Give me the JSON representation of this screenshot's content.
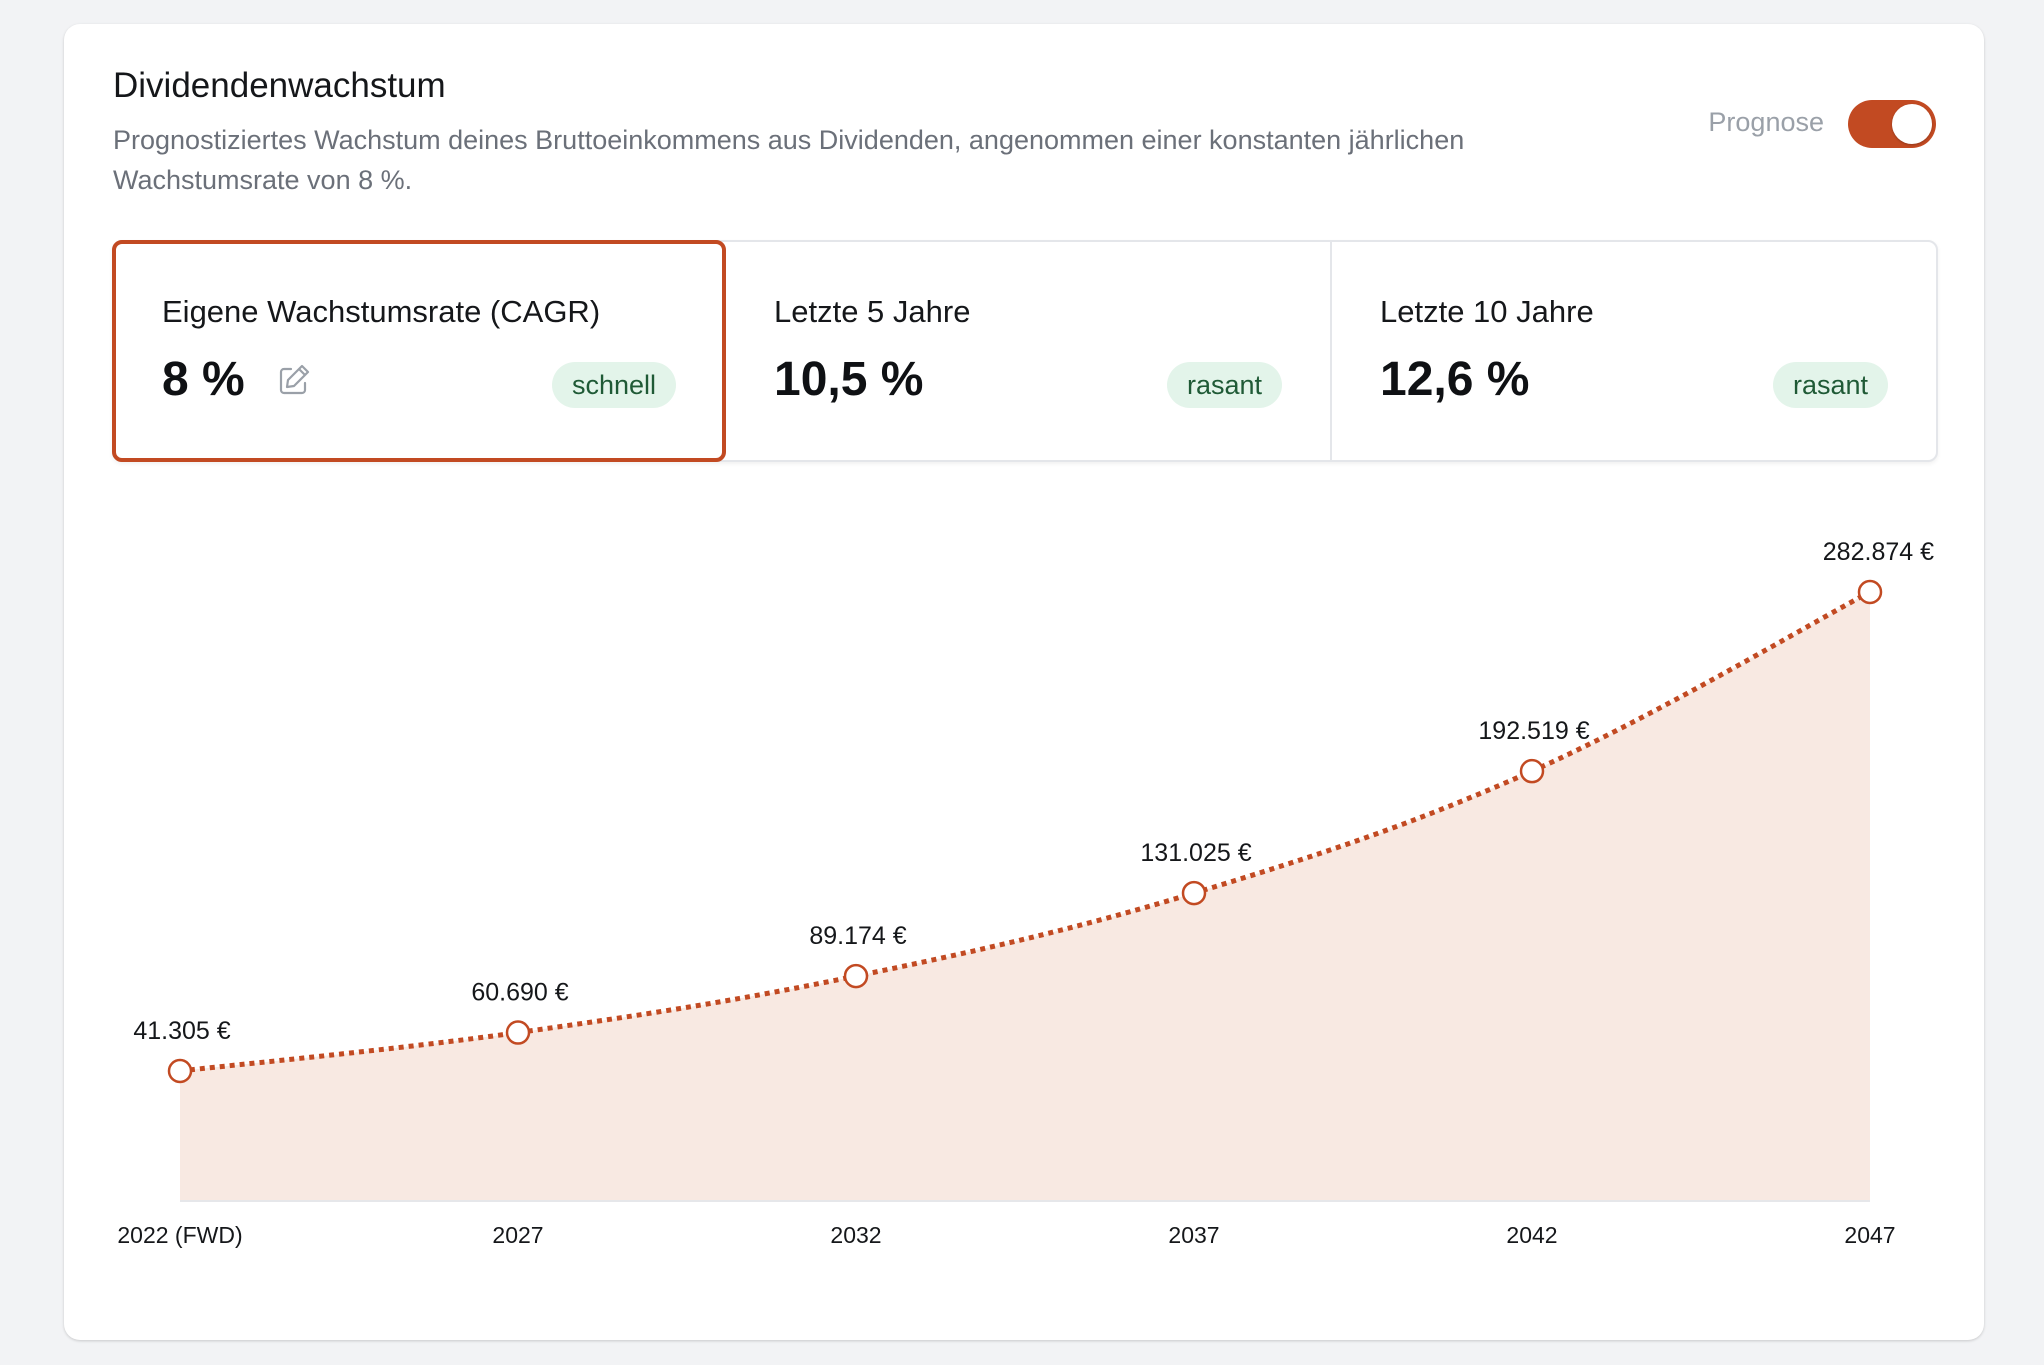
{
  "header": {
    "title": "Dividendenwachstum",
    "subtitle": "Prognostiziertes Wachstum deines Bruttoeinkommens aus Dividenden, angenommen einer konstanten jährlichen Wachstumsrate von 8 %.",
    "forecast_label": "Prognose",
    "forecast_enabled": true
  },
  "stats": [
    {
      "label": "Eigene Wachstumsrate (CAGR)",
      "value": "8 %",
      "badge": "schnell",
      "selected": true,
      "editable": true
    },
    {
      "label": "Letzte 5 Jahre",
      "value": "10,5 %",
      "badge": "rasant",
      "selected": false
    },
    {
      "label": "Letzte 10 Jahre",
      "value": "12,6 %",
      "badge": "rasant",
      "selected": false
    }
  ],
  "icons": {
    "edit": "pencil-edit-icon"
  },
  "colors": {
    "accent": "#c24a22",
    "area_fill": "#f8e9e2",
    "badge_bg": "#e3f4ea",
    "badge_text": "#1f5a36"
  },
  "chart_data": {
    "type": "area",
    "categories": [
      "2022 (FWD)",
      "2027",
      "2032",
      "2037",
      "2042",
      "2047"
    ],
    "values": [
      41305,
      60690,
      89174,
      131025,
      192519,
      282874
    ],
    "data_labels": [
      "41.305 €",
      "60.690 €",
      "89.174 €",
      "131.025 €",
      "192.519 €",
      "282.874 €"
    ],
    "line_style": "dotted",
    "markers": "hollow-circle",
    "grid": false,
    "legend": false
  }
}
